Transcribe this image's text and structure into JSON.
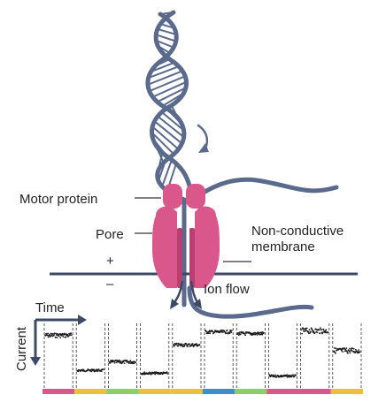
{
  "labels": {
    "motor_protein": "Motor protein",
    "pore": "Pore",
    "membrane_line1": "Non-conductive",
    "membrane_line2": "membrane",
    "plus": "+",
    "minus": "–",
    "ion_flow": "Ion flow",
    "time": "Time",
    "current": "Current"
  },
  "colors": {
    "dna": "#5a6a8c",
    "protein": "#d9578a",
    "protein_dark": "#b83f72",
    "membrane": "#3d4a66",
    "trace": "#1a1a1a",
    "base_green": "#8fcc6a",
    "base_yellow": "#e8c23a",
    "base_pink": "#d9578a",
    "base_blue": "#3a8fd0"
  },
  "trace_segments": [
    {
      "level": 0.82,
      "noise": 0.04,
      "base": "pink"
    },
    {
      "level": 0.2,
      "noise": 0.02,
      "base": "yellow"
    },
    {
      "level": 0.35,
      "noise": 0.03,
      "base": "green"
    },
    {
      "level": 0.15,
      "noise": 0.02,
      "base": "yellow"
    },
    {
      "level": 0.65,
      "noise": 0.03,
      "base": "yellow"
    },
    {
      "level": 0.88,
      "noise": 0.03,
      "base": "blue"
    },
    {
      "level": 0.85,
      "noise": 0.03,
      "base": "green"
    },
    {
      "level": 0.1,
      "noise": 0.02,
      "base": "pink"
    },
    {
      "level": 0.9,
      "noise": 0.05,
      "base": "pink"
    },
    {
      "level": 0.55,
      "noise": 0.05,
      "base": "yellow"
    }
  ]
}
